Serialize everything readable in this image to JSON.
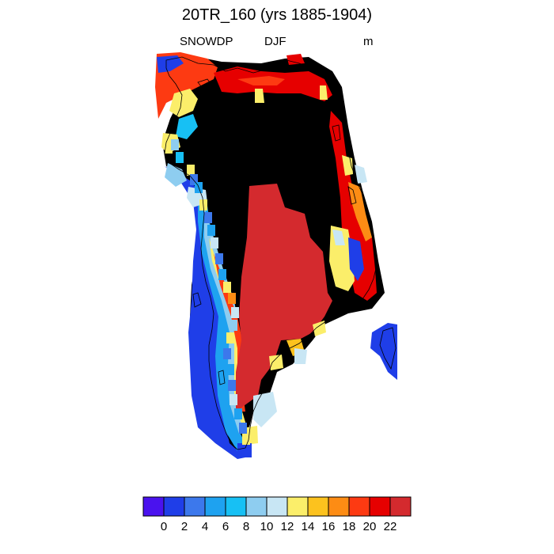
{
  "plot": {
    "title": "20TR_160 (yrs 1885-1904)",
    "subtitle_left": "SNOWDP",
    "subtitle_center": "DJF",
    "subtitle_right": "m"
  },
  "colorbar": {
    "colors": [
      "#4a12ee",
      "#1f3ee8",
      "#3c78ec",
      "#1ea2f0",
      "#17c0f4",
      "#8ecdf0",
      "#c8e6f4",
      "#fbee6a",
      "#fcc21e",
      "#fd8c14",
      "#fd3a12",
      "#e60000",
      "#d42a2e"
    ],
    "tick_labels": [
      "0",
      "2",
      "4",
      "6",
      "8",
      "10",
      "12",
      "14",
      "16",
      "18",
      "20",
      "22"
    ]
  },
  "field": {
    "variable": "SNOWDP",
    "season": "DJF",
    "units": "m",
    "region": "Greenland",
    "interior_value": ">22",
    "ice_sheet_value": "20-22",
    "margin_values": [
      "0-2",
      "2-4",
      "4-6",
      "6-8",
      "8-10",
      "10-12",
      "12-14",
      "14-16",
      "16-18"
    ]
  }
}
